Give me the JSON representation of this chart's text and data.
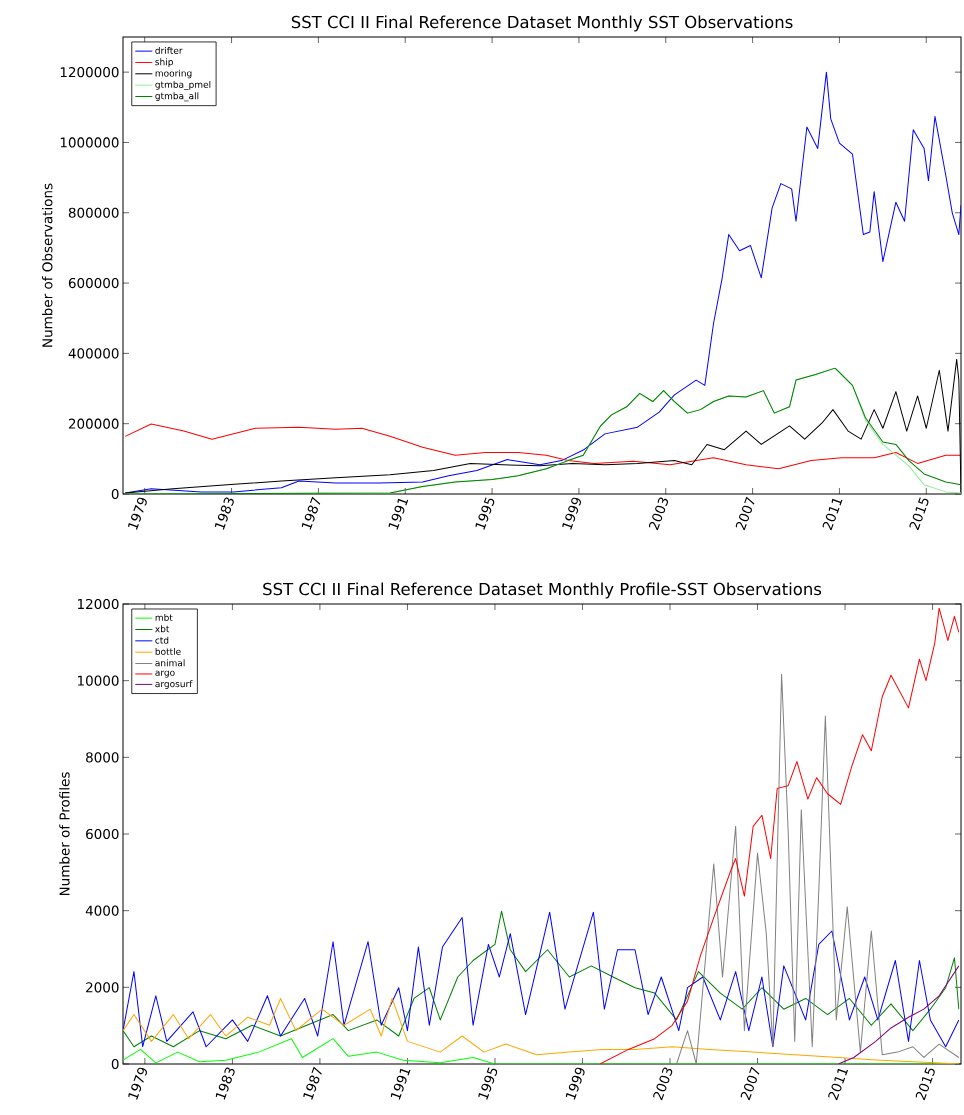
{
  "chart_data": [
    {
      "type": "line",
      "title": "SST CCI II Final Reference Dataset Monthly SST Observations",
      "ylabel": "Number of Observations",
      "legend": "top left",
      "xlim": [
        1978,
        2016.6
      ],
      "ylim": [
        0,
        1300000
      ],
      "xticks": [
        1979,
        1983,
        1987,
        1991,
        1995,
        1999,
        2003,
        2007,
        2011,
        2015
      ],
      "yticks": [
        0,
        200000,
        400000,
        600000,
        800000,
        1000000,
        1200000
      ],
      "series": [
        {
          "name": "drifter",
          "color": "#0000ff",
          "x": [
            1978.1,
            1979.3,
            1981.6,
            1983.1,
            1985.3,
            1986.1,
            1987.8,
            1989.8,
            1991.8,
            1993.0,
            1994.3,
            1995.7,
            1997.2,
            1998.2,
            1999.2,
            2000.2,
            2001.7,
            2002.7,
            2003.4,
            2004.4,
            2004.8,
            2005.2,
            2005.6,
            2005.9,
            2006.4,
            2006.9,
            2007.4,
            2007.9,
            2008.3,
            2008.8,
            2009.0,
            2009.5,
            2010.0,
            2010.4,
            2010.6,
            2011.0,
            2011.6,
            2012.1,
            2012.4,
            2012.6,
            2013.0,
            2013.6,
            2014.0,
            2014.4,
            2014.9,
            2015.1,
            2015.4,
            2015.9,
            2016.2,
            2016.5,
            2016.6
          ],
          "values": [
            3000,
            15000,
            6000,
            6000,
            18000,
            37000,
            31000,
            31000,
            34000,
            52000,
            67000,
            98000,
            83000,
            95000,
            125000,
            171000,
            190000,
            233000,
            282000,
            324000,
            309000,
            485000,
            615000,
            738000,
            692000,
            707000,
            615000,
            814000,
            883000,
            868000,
            776000,
            1044000,
            983000,
            1200000,
            1067000,
            998000,
            967000,
            738000,
            745000,
            860000,
            661000,
            830000,
            776000,
            1036000,
            983000,
            891000,
            1074000,
            906000,
            799000,
            738000,
            822000
          ]
        },
        {
          "name": "ship",
          "color": "#ff0000",
          "x": [
            1978.1,
            1979.3,
            1980.8,
            1982.1,
            1984.1,
            1986.1,
            1987.8,
            1989.0,
            1990.3,
            1991.8,
            1993.3,
            1994.7,
            1996.2,
            1997.5,
            1998.5,
            1999.7,
            2001.5,
            2003.2,
            2005.2,
            2006.7,
            2008.2,
            2009.7,
            2011.1,
            2012.6,
            2013.6,
            2014.6,
            2015.9,
            2016.6
          ],
          "values": [
            164000,
            199000,
            179000,
            156000,
            187000,
            190000,
            184000,
            187000,
            164000,
            133000,
            110000,
            118000,
            118000,
            110000,
            95000,
            87000,
            93000,
            83000,
            103000,
            83000,
            72000,
            95000,
            103000,
            103000,
            118000,
            87000,
            110000,
            110000
          ]
        },
        {
          "name": "mooring",
          "color": "#000000",
          "x": [
            1978.1,
            1980.3,
            1982.8,
            1985.3,
            1987.8,
            1990.3,
            1992.3,
            1994.0,
            1995.5,
            1997.2,
            1998.7,
            2000.2,
            2001.7,
            2003.4,
            2004.2,
            2004.9,
            2005.7,
            2006.7,
            2007.4,
            2008.7,
            2009.4,
            2010.2,
            2010.7,
            2011.4,
            2012.0,
            2012.6,
            2013.0,
            2013.6,
            2014.1,
            2014.6,
            2015.0,
            2015.6,
            2016.0,
            2016.4,
            2016.5,
            2016.6
          ],
          "values": [
            3000,
            15000,
            26000,
            37000,
            46000,
            55000,
            67000,
            87000,
            83000,
            80000,
            87000,
            83000,
            87000,
            95000,
            83000,
            141000,
            126000,
            179000,
            141000,
            194000,
            156000,
            202000,
            240000,
            179000,
            156000,
            240000,
            187000,
            291000,
            179000,
            279000,
            187000,
            352000,
            179000,
            383000,
            324000,
            3000
          ]
        },
        {
          "name": "gtmba_pmel",
          "color": "#90ee90",
          "x": [
            1978.1,
            1990.3,
            1991.8,
            1993.3,
            1995.0,
            1996.2,
            1997.5,
            1998.5,
            1999.2,
            2000.0,
            2000.5,
            2001.2,
            2001.8,
            2002.4,
            2002.9,
            2003.4,
            2004.0,
            2004.6,
            2005.2,
            2005.9,
            2006.7,
            2007.5,
            2008.0,
            2008.7,
            2009.0,
            2009.9,
            2010.8,
            2011.6,
            2012.2,
            2013.0,
            2014.2,
            2014.9,
            2015.9,
            2016.6
          ],
          "values": [
            0,
            3000,
            21000,
            34000,
            41000,
            52000,
            72000,
            95000,
            110000,
            194000,
            225000,
            248000,
            286000,
            263000,
            294000,
            263000,
            230000,
            240000,
            263000,
            279000,
            276000,
            294000,
            230000,
            248000,
            324000,
            340000,
            358000,
            309000,
            210000,
            141000,
            80000,
            26000,
            6000,
            3000
          ]
        },
        {
          "name": "gtmba_all",
          "color": "#008000",
          "x": [
            1978.1,
            1990.3,
            1991.8,
            1993.3,
            1995.0,
            1996.2,
            1997.5,
            1998.5,
            1999.2,
            2000.0,
            2000.5,
            2001.2,
            2001.8,
            2002.4,
            2002.9,
            2003.4,
            2004.0,
            2004.6,
            2005.2,
            2005.9,
            2006.7,
            2007.5,
            2008.0,
            2008.7,
            2009.0,
            2009.9,
            2010.8,
            2011.6,
            2012.2,
            2013.0,
            2013.6,
            2014.2,
            2014.9,
            2015.9,
            2016.6
          ],
          "values": [
            0,
            3000,
            21000,
            34000,
            41000,
            52000,
            72000,
            95000,
            110000,
            194000,
            225000,
            248000,
            286000,
            263000,
            294000,
            263000,
            230000,
            240000,
            263000,
            279000,
            276000,
            294000,
            230000,
            248000,
            324000,
            340000,
            358000,
            309000,
            217000,
            148000,
            141000,
            95000,
            57000,
            34000,
            26000
          ]
        }
      ]
    },
    {
      "type": "line",
      "title": "SST CCI II Final Reference Dataset Monthly Profile-SST Observations",
      "ylabel": "Number of Profiles",
      "legend": "top left",
      "xlim": [
        1978,
        2016.3
      ],
      "ylim": [
        0,
        12000
      ],
      "xticks": [
        1979,
        1983,
        1987,
        1991,
        1995,
        1999,
        2003,
        2007,
        2011,
        2015
      ],
      "yticks": [
        0,
        2000,
        4000,
        6000,
        8000,
        10000,
        12000
      ],
      "series": [
        {
          "name": "mbt",
          "color": "#00ff00",
          "x": [
            1978.0,
            1978.8,
            1979.5,
            1980.5,
            1981.5,
            1982.7,
            1984.2,
            1985.7,
            1986.2,
            1987.6,
            1988.3,
            1989.6,
            1990.8,
            1992.5,
            1994.0,
            1995.0,
            2016.2
          ],
          "values": [
            100,
            380,
            30,
            310,
            60,
            100,
            310,
            660,
            170,
            660,
            200,
            310,
            100,
            30,
            170,
            0,
            0
          ]
        },
        {
          "name": "xbt",
          "color": "#008000",
          "x": [
            1978.0,
            1978.5,
            1979.3,
            1980.3,
            1981.5,
            1982.7,
            1983.9,
            1985.2,
            1986.4,
            1987.6,
            1988.3,
            1989.6,
            1990.6,
            1991.3,
            1992.0,
            1992.5,
            1993.3,
            1994.0,
            1995.0,
            1995.3,
            1995.7,
            1996.4,
            1997.4,
            1998.4,
            1999.4,
            2000.4,
            2001.4,
            2002.3,
            2003.3,
            2004.3,
            2005.3,
            2006.3,
            2007.2,
            2008.2,
            2009.2,
            2010.2,
            2011.2,
            2012.2,
            2013.1,
            2014.1,
            2014.9,
            2015.6,
            2016.0,
            2016.2
          ],
          "values": [
            870,
            450,
            730,
            450,
            870,
            660,
            1010,
            730,
            1010,
            1290,
            870,
            1150,
            730,
            1710,
            1990,
            1150,
            2270,
            2700,
            3120,
            3990,
            2980,
            2410,
            2980,
            2270,
            2560,
            2270,
            1990,
            1850,
            1150,
            2410,
            1850,
            1430,
            1990,
            1430,
            1710,
            1290,
            1710,
            1010,
            1570,
            870,
            1430,
            1990,
            2770,
            1430
          ]
        },
        {
          "name": "ctd",
          "color": "#0000ff",
          "x": [
            1978.0,
            1978.5,
            1978.9,
            1979.5,
            1980.0,
            1981.2,
            1981.8,
            1983.0,
            1983.7,
            1984.6,
            1985.2,
            1986.3,
            1986.9,
            1987.6,
            1988.1,
            1989.2,
            1989.8,
            1990.6,
            1991.0,
            1991.5,
            1992.0,
            1992.6,
            1993.5,
            1994.0,
            1994.7,
            1995.2,
            1995.7,
            1996.4,
            1997.5,
            1998.2,
            1999.5,
            2000.0,
            2000.6,
            2001.4,
            2002.0,
            2002.6,
            2003.4,
            2003.8,
            2004.5,
            2005.3,
            2006.0,
            2006.6,
            2007.2,
            2007.7,
            2008.2,
            2009.2,
            2009.8,
            2010.4,
            2011.2,
            2011.9,
            2012.5,
            2013.3,
            2013.9,
            2014.4,
            2014.9,
            2015.6,
            2016.2
          ],
          "values": [
            870,
            2410,
            450,
            1780,
            590,
            1360,
            450,
            1150,
            590,
            1780,
            730,
            1710,
            730,
            3190,
            1010,
            3190,
            1010,
            1990,
            870,
            3050,
            1010,
            3050,
            3820,
            1010,
            3120,
            2270,
            3400,
            1290,
            3960,
            1430,
            3960,
            1430,
            2980,
            2980,
            1290,
            2270,
            870,
            1990,
            2270,
            1150,
            2410,
            870,
            2270,
            450,
            2560,
            1150,
            3120,
            3470,
            1150,
            2270,
            1150,
            2700,
            590,
            2700,
            1150,
            450,
            1150
          ]
        },
        {
          "name": "bottle",
          "color": "#ffa500",
          "x": [
            1978.0,
            1978.5,
            1979.3,
            1980.3,
            1981.0,
            1982.0,
            1982.7,
            1983.7,
            1984.7,
            1985.2,
            1985.9,
            1987.1,
            1988.1,
            1989.3,
            1989.8,
            1990.3,
            1991.0,
            1992.5,
            1993.5,
            1994.5,
            1995.5,
            1996.9,
            1998.4,
            1999.9,
            2001.4,
            2003.1,
            2004.8,
            2006.8,
            2008.7,
            2010.7,
            2012.6,
            2014.1,
            2015.1,
            2016.2
          ],
          "values": [
            870,
            1290,
            590,
            1290,
            660,
            1290,
            730,
            1220,
            1010,
            1710,
            870,
            1430,
            1010,
            1430,
            730,
            1710,
            590,
            310,
            730,
            310,
            520,
            240,
            310,
            380,
            380,
            450,
            380,
            310,
            240,
            170,
            100,
            60,
            30,
            0
          ]
        },
        {
          "name": "animal",
          "color": "#808080",
          "x": [
            2003.3,
            2003.8,
            2004.2,
            2005.0,
            2005.4,
            2006.0,
            2006.4,
            2007.0,
            2007.4,
            2007.7,
            2008.1,
            2008.4,
            2008.7,
            2009.0,
            2009.5,
            2009.8,
            2010.1,
            2010.6,
            2011.1,
            2011.7,
            2012.2,
            2012.7,
            2013.4,
            2014.1,
            2014.6,
            2015.3,
            2016.2
          ],
          "values": [
            0,
            870,
            0,
            5220,
            2270,
            6200,
            870,
            5500,
            3400,
            450,
            10170,
            6070,
            590,
            6630,
            450,
            4520,
            9080,
            1150,
            4100,
            310,
            3470,
            240,
            310,
            450,
            170,
            520,
            170
          ]
        },
        {
          "name": "argo",
          "color": "#ff0000",
          "x": [
            1999.8,
            2001.1,
            2002.3,
            2003.1,
            2003.8,
            2004.4,
            2005.0,
            2005.8,
            2006.0,
            2006.4,
            2006.8,
            2007.2,
            2007.6,
            2007.9,
            2008.4,
            2008.8,
            2009.3,
            2009.7,
            2010.2,
            2010.8,
            2011.3,
            2011.8,
            2012.2,
            2012.7,
            2013.1,
            2013.9,
            2014.4,
            2014.7,
            2015.1,
            2015.3,
            2015.7,
            2016.0,
            2016.2
          ],
          "values": [
            0,
            380,
            660,
            1010,
            1640,
            2840,
            3820,
            5080,
            5360,
            4380,
            6200,
            6490,
            5360,
            7190,
            7260,
            7890,
            6910,
            7470,
            7050,
            6770,
            7750,
            8590,
            8170,
            9580,
            10140,
            9290,
            10560,
            10000,
            10980,
            11890,
            11050,
            11680,
            11260
          ]
        },
        {
          "name": "argosurf",
          "color": "#800080",
          "x": [
            2010.7,
            2011.4,
            2012.4,
            2013.1,
            2013.9,
            2014.6,
            2015.3,
            2016.2
          ],
          "values": [
            0,
            170,
            590,
            940,
            1220,
            1430,
            1780,
            2560
          ]
        }
      ]
    }
  ]
}
